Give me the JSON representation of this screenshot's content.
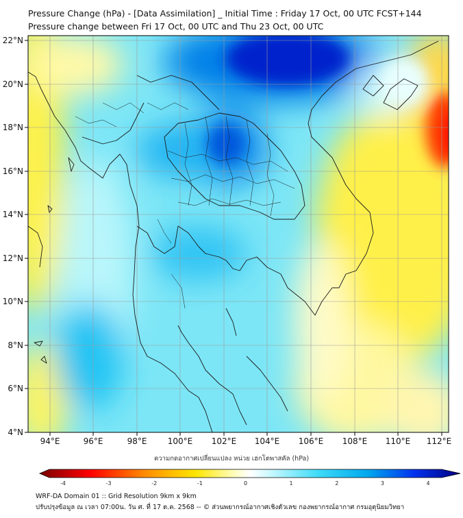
{
  "titles": {
    "line1": "Pressure Change (hPa) - [Data Assimilation] _ Initial Time : Friday 17 Oct, 00 UTC FCST+144",
    "line2": "Pressure change between Fri 17 Oct, 00 UTC and Thu 23 Oct, 00 UTC"
  },
  "map": {
    "lat_labels": [
      "22°N",
      "20°N",
      "18°N",
      "16°N",
      "14°N",
      "12°N",
      "10°N",
      "8°N",
      "6°N",
      "4°N"
    ],
    "lon_labels": [
      "94°E",
      "96°E",
      "98°E",
      "100°E",
      "102°E",
      "104°E",
      "106°E",
      "108°E",
      "110°E",
      "112°E"
    ],
    "lat_range": [
      4,
      22.2
    ],
    "lon_range": [
      93.0,
      112.2
    ]
  },
  "colorbar": {
    "label": "ความกดอากาศเปลี่ยนแปลง หน่วย เฮกโตพาสคัล (hPa)",
    "ticks": [
      "-4",
      "-3",
      "-2",
      "-1",
      "0",
      "1",
      "2",
      "3",
      "4"
    ],
    "tick_values": [
      -4,
      -3,
      -2,
      -1,
      0,
      1,
      2,
      3,
      4
    ],
    "range": [
      -4.3,
      4.3
    ],
    "colors": {
      "neg_extreme": "#7a0000",
      "neg_strong": "#ff0000",
      "neg_mid": "#ffa500",
      "neg_low": "#fff23a",
      "zero": "#ffffff",
      "pos_low": "#a8f4ff",
      "pos_mid": "#00c8f0",
      "pos_strong": "#0033ee",
      "pos_extreme": "#000080"
    }
  },
  "footer": {
    "line1": "WRF-DA Domain 01 :: Grid Resolution 9km x 9km",
    "line2": "ปรับปรุงข้อมูล ณ เวลา 07:00น. วัน ศ. ที่ 17 ต.ค. 2568 -- © ส่วนพยากรณ์อากาศเชิงตัวเลข กองพยากรณ์อากาศ กรมอุตุนิยมวิทยา"
  }
}
